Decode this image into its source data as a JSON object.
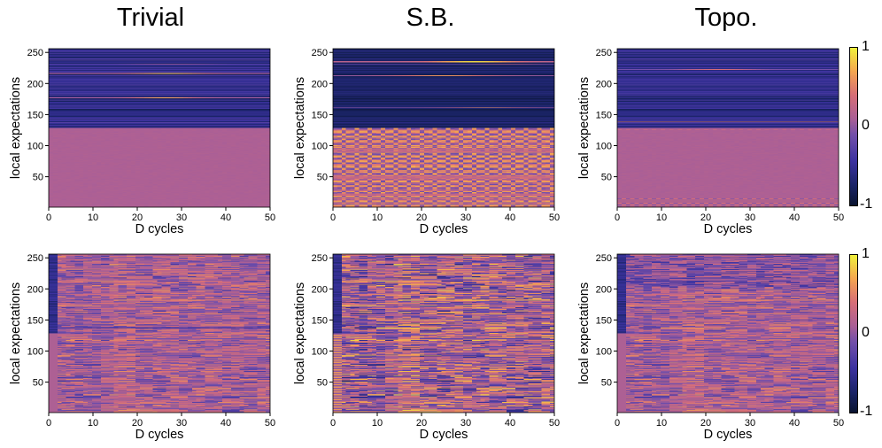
{
  "column_titles": [
    "Trivial",
    "S.B.",
    "Topo."
  ],
  "colorbar": {
    "max_label": "1",
    "mid_label": "0",
    "min_label": "-1",
    "colormap": "plasma"
  },
  "chart_data": [
    {
      "type": "heatmap",
      "row": 1,
      "title": "Trivial",
      "xlabel": "D cycles",
      "ylabel": "local expectations",
      "xlim": [
        0,
        50
      ],
      "ylim": [
        1,
        256
      ],
      "xticks": [
        "0",
        "10",
        "20",
        "30",
        "40",
        "50"
      ],
      "yticks": [
        "50",
        "100",
        "150",
        "200",
        "250"
      ],
      "vlim": [
        -1,
        1
      ],
      "pattern": "trivial-static"
    },
    {
      "type": "heatmap",
      "row": 1,
      "title": "S.B.",
      "xlabel": "D cycles",
      "ylabel": "local expectations",
      "xlim": [
        0,
        50
      ],
      "ylim": [
        1,
        256
      ],
      "xticks": [
        "0",
        "10",
        "20",
        "30",
        "40",
        "50"
      ],
      "yticks": [
        "50",
        "100",
        "150",
        "200",
        "250"
      ],
      "vlim": [
        -1,
        1
      ],
      "pattern": "sb-static"
    },
    {
      "type": "heatmap",
      "row": 1,
      "title": "Topo.",
      "xlabel": "D cycles",
      "ylabel": "local expectations",
      "xlim": [
        0,
        50
      ],
      "ylim": [
        1,
        256
      ],
      "xticks": [
        "0",
        "10",
        "20",
        "30",
        "40",
        "50"
      ],
      "yticks": [
        "50",
        "100",
        "150",
        "200",
        "250"
      ],
      "vlim": [
        -1,
        1
      ],
      "pattern": "topo-static"
    },
    {
      "type": "heatmap",
      "row": 2,
      "title": "Trivial",
      "xlabel": "D cycles",
      "ylabel": "local expectations",
      "xlim": [
        0,
        50
      ],
      "ylim": [
        1,
        256
      ],
      "xticks": [
        "0",
        "10",
        "20",
        "30",
        "40",
        "50"
      ],
      "yticks": [
        "50",
        "100",
        "150",
        "200",
        "250"
      ],
      "vlim": [
        -1,
        1
      ],
      "pattern": "trivial-dynamic"
    },
    {
      "type": "heatmap",
      "row": 2,
      "title": "S.B.",
      "xlabel": "D cycles",
      "ylabel": "local expectations",
      "xlim": [
        0,
        50
      ],
      "ylim": [
        1,
        256
      ],
      "xticks": [
        "0",
        "10",
        "20",
        "30",
        "40",
        "50"
      ],
      "yticks": [
        "50",
        "100",
        "150",
        "200",
        "250"
      ],
      "vlim": [
        -1,
        1
      ],
      "pattern": "sb-dynamic"
    },
    {
      "type": "heatmap",
      "row": 2,
      "title": "Topo.",
      "xlabel": "D cycles",
      "ylabel": "local expectations",
      "xlim": [
        0,
        50
      ],
      "ylim": [
        1,
        256
      ],
      "xticks": [
        "0",
        "10",
        "20",
        "30",
        "40",
        "50"
      ],
      "yticks": [
        "50",
        "100",
        "150",
        "200",
        "250"
      ],
      "vlim": [
        -1,
        1
      ],
      "pattern": "topo-dynamic"
    }
  ]
}
